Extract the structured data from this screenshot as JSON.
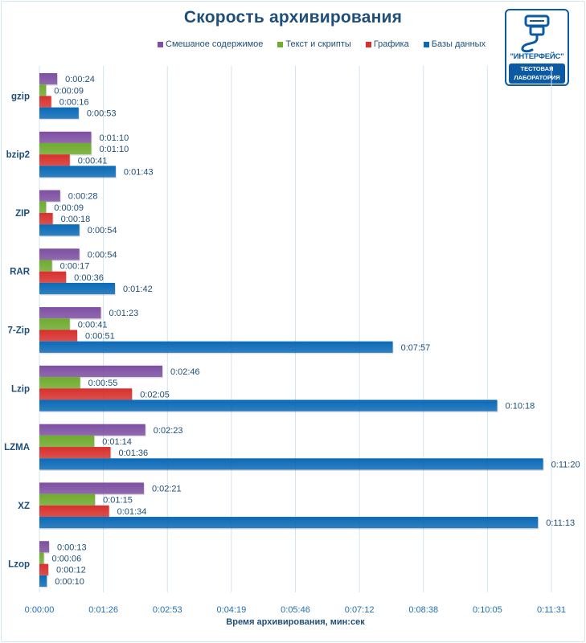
{
  "chart_data": {
    "type": "bar",
    "orientation": "horizontal",
    "title": "Скорость архивирования",
    "xlabel": "Время архивирования, мин:сек",
    "ylabel": "",
    "xlim_seconds": [
      0,
      691.2
    ],
    "x_ticks": [
      "0:00:00",
      "0:01:26",
      "0:02:53",
      "0:04:19",
      "0:05:46",
      "0:07:12",
      "0:08:38",
      "0:10:05",
      "0:11:31"
    ],
    "x_tick_seconds": [
      0,
      86.4,
      172.8,
      259.2,
      345.6,
      432,
      518.4,
      604.8,
      691.2
    ],
    "grid": "vertical",
    "legend_position": "top",
    "categories": [
      "gzip",
      "bzip2",
      "ZIP",
      "RAR",
      "7-Zip",
      "Lzip",
      "LZMA",
      "XZ",
      "Lzop"
    ],
    "series": [
      {
        "name": "Смешаное содержимое",
        "color": "#7e4fa3",
        "labels": [
          "0:00:24",
          "0:01:10",
          "0:00:28",
          "0:00:54",
          "0:01:23",
          "0:02:46",
          "0:02:23",
          "0:02:21",
          "0:00:13"
        ],
        "values_seconds": [
          24,
          70,
          28,
          54,
          83,
          166,
          143,
          141,
          13
        ]
      },
      {
        "name": "Текст и скрипты",
        "color": "#6fac2d",
        "labels": [
          "0:00:09",
          "0:01:10",
          "0:00:09",
          "0:00:17",
          "0:00:41",
          "0:00:55",
          "0:01:14",
          "0:01:15",
          "0:00:06"
        ],
        "values_seconds": [
          9,
          70,
          9,
          17,
          41,
          55,
          74,
          75,
          6
        ]
      },
      {
        "name": "Графика",
        "color": "#d9302c",
        "labels": [
          "0:00:16",
          "0:00:41",
          "0:00:18",
          "0:00:36",
          "0:00:51",
          "0:02:05",
          "0:01:36",
          "0:01:34",
          "0:00:12"
        ],
        "values_seconds": [
          16,
          41,
          18,
          36,
          51,
          125,
          96,
          94,
          12
        ]
      },
      {
        "name": "Базы данных",
        "color": "#0a6ab8",
        "labels": [
          "0:00:53",
          "0:01:43",
          "0:00:54",
          "0:01:42",
          "0:07:57",
          "0:10:18",
          "0:11:20",
          "0:11:13",
          "0:00:10"
        ],
        "values_seconds": [
          53,
          103,
          54,
          102,
          477,
          618,
          680,
          673,
          10
        ]
      }
    ]
  },
  "logo": {
    "name": "\"ИНТЕРФЕЙС\"",
    "line1": "ТЕСТОВАЯ",
    "line2": "ЛАБОРАТОРИЯ"
  },
  "colors": {
    "title": "#1f4e79",
    "label": "#1f4e79",
    "grid": "#d3e3ee"
  }
}
